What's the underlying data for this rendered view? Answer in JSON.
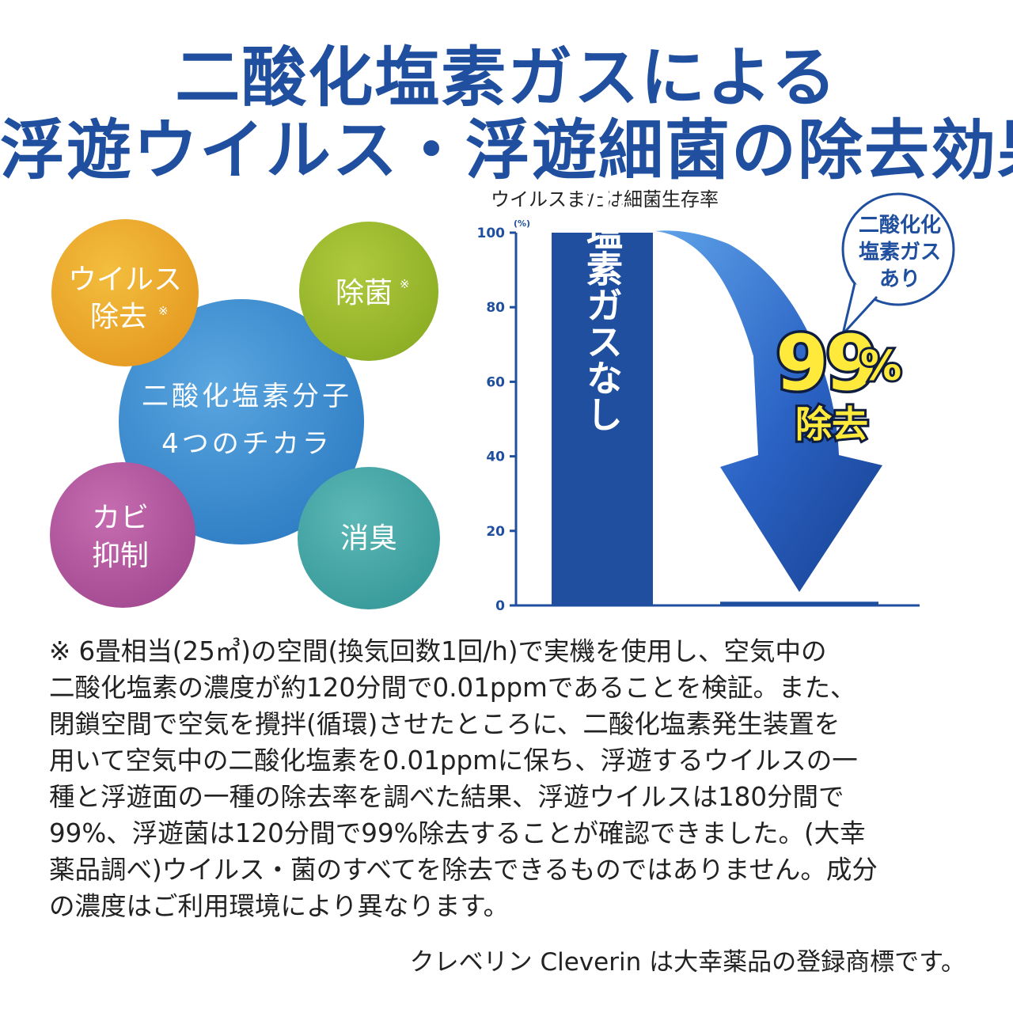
{
  "title": {
    "line1": "二酸化塩素ガスによる",
    "line2": "浮遊ウイルス・浮遊細菌の除去効果"
  },
  "circles": {
    "center": {
      "line1": "二酸化塩素分子",
      "line2": "4つのチカラ",
      "color": "#3f8fd2"
    },
    "items": [
      {
        "line1": "ウイルス",
        "line2": "除去",
        "mark": "※",
        "color": "#eaa92c"
      },
      {
        "line1": "除菌",
        "line2": "",
        "mark": "※",
        "color": "#9dbb2e"
      },
      {
        "line1": "カビ",
        "line2": "抑制",
        "mark": "",
        "color": "#b55aa0"
      },
      {
        "line1": "消臭",
        "line2": "",
        "mark": "",
        "color": "#46a8a8"
      }
    ]
  },
  "chart_data": {
    "type": "bar",
    "title": "ウイルスまたは細菌生存率",
    "ylabel": "(%)",
    "ylim": [
      0,
      100
    ],
    "yticks": [
      0,
      20,
      40,
      60,
      80,
      100
    ],
    "categories": [
      "二酸化塩素ガスなし",
      "二酸化塩素ガスあり"
    ],
    "values": [
      100,
      1
    ],
    "bar_label": "二酸化塩素ガスなし",
    "callout_label": [
      "二酸化化",
      "塩素ガス",
      "あり"
    ],
    "reduction_value": "99",
    "reduction_unit": "%",
    "reduction_text": "除去",
    "colors": {
      "bar": "#1f4f9e",
      "arrow": "#2a62c4",
      "axis": "#1f4f9e",
      "highlight": "#ffe93b"
    }
  },
  "note": {
    "lines": [
      "※ 6畳相当(25㎥)の空間(換気回数1回/h)で実機を使用し、空気中の",
      "二酸化塩素の濃度が約120分間で0.01ppmであることを検証。また、",
      "閉鎖空間で空気を攪拌(循環)させたところに、二酸化塩素発生装置を",
      "用いて空気中の二酸化塩素を0.01ppmに保ち、浮遊するウイルスの一",
      "種と浮遊面の一種の除去率を調べた結果、浮遊ウイルスは180分間で",
      "99%、浮遊菌は120分間で99%除去することが確認できました。(大幸",
      "薬品調べ)ウイルス・菌のすべてを除去できるものではありません。成分",
      "の濃度はご利用環境により異なります。"
    ],
    "trademark": "クレベリン Cleverin は大幸薬品の登録商標です。"
  }
}
